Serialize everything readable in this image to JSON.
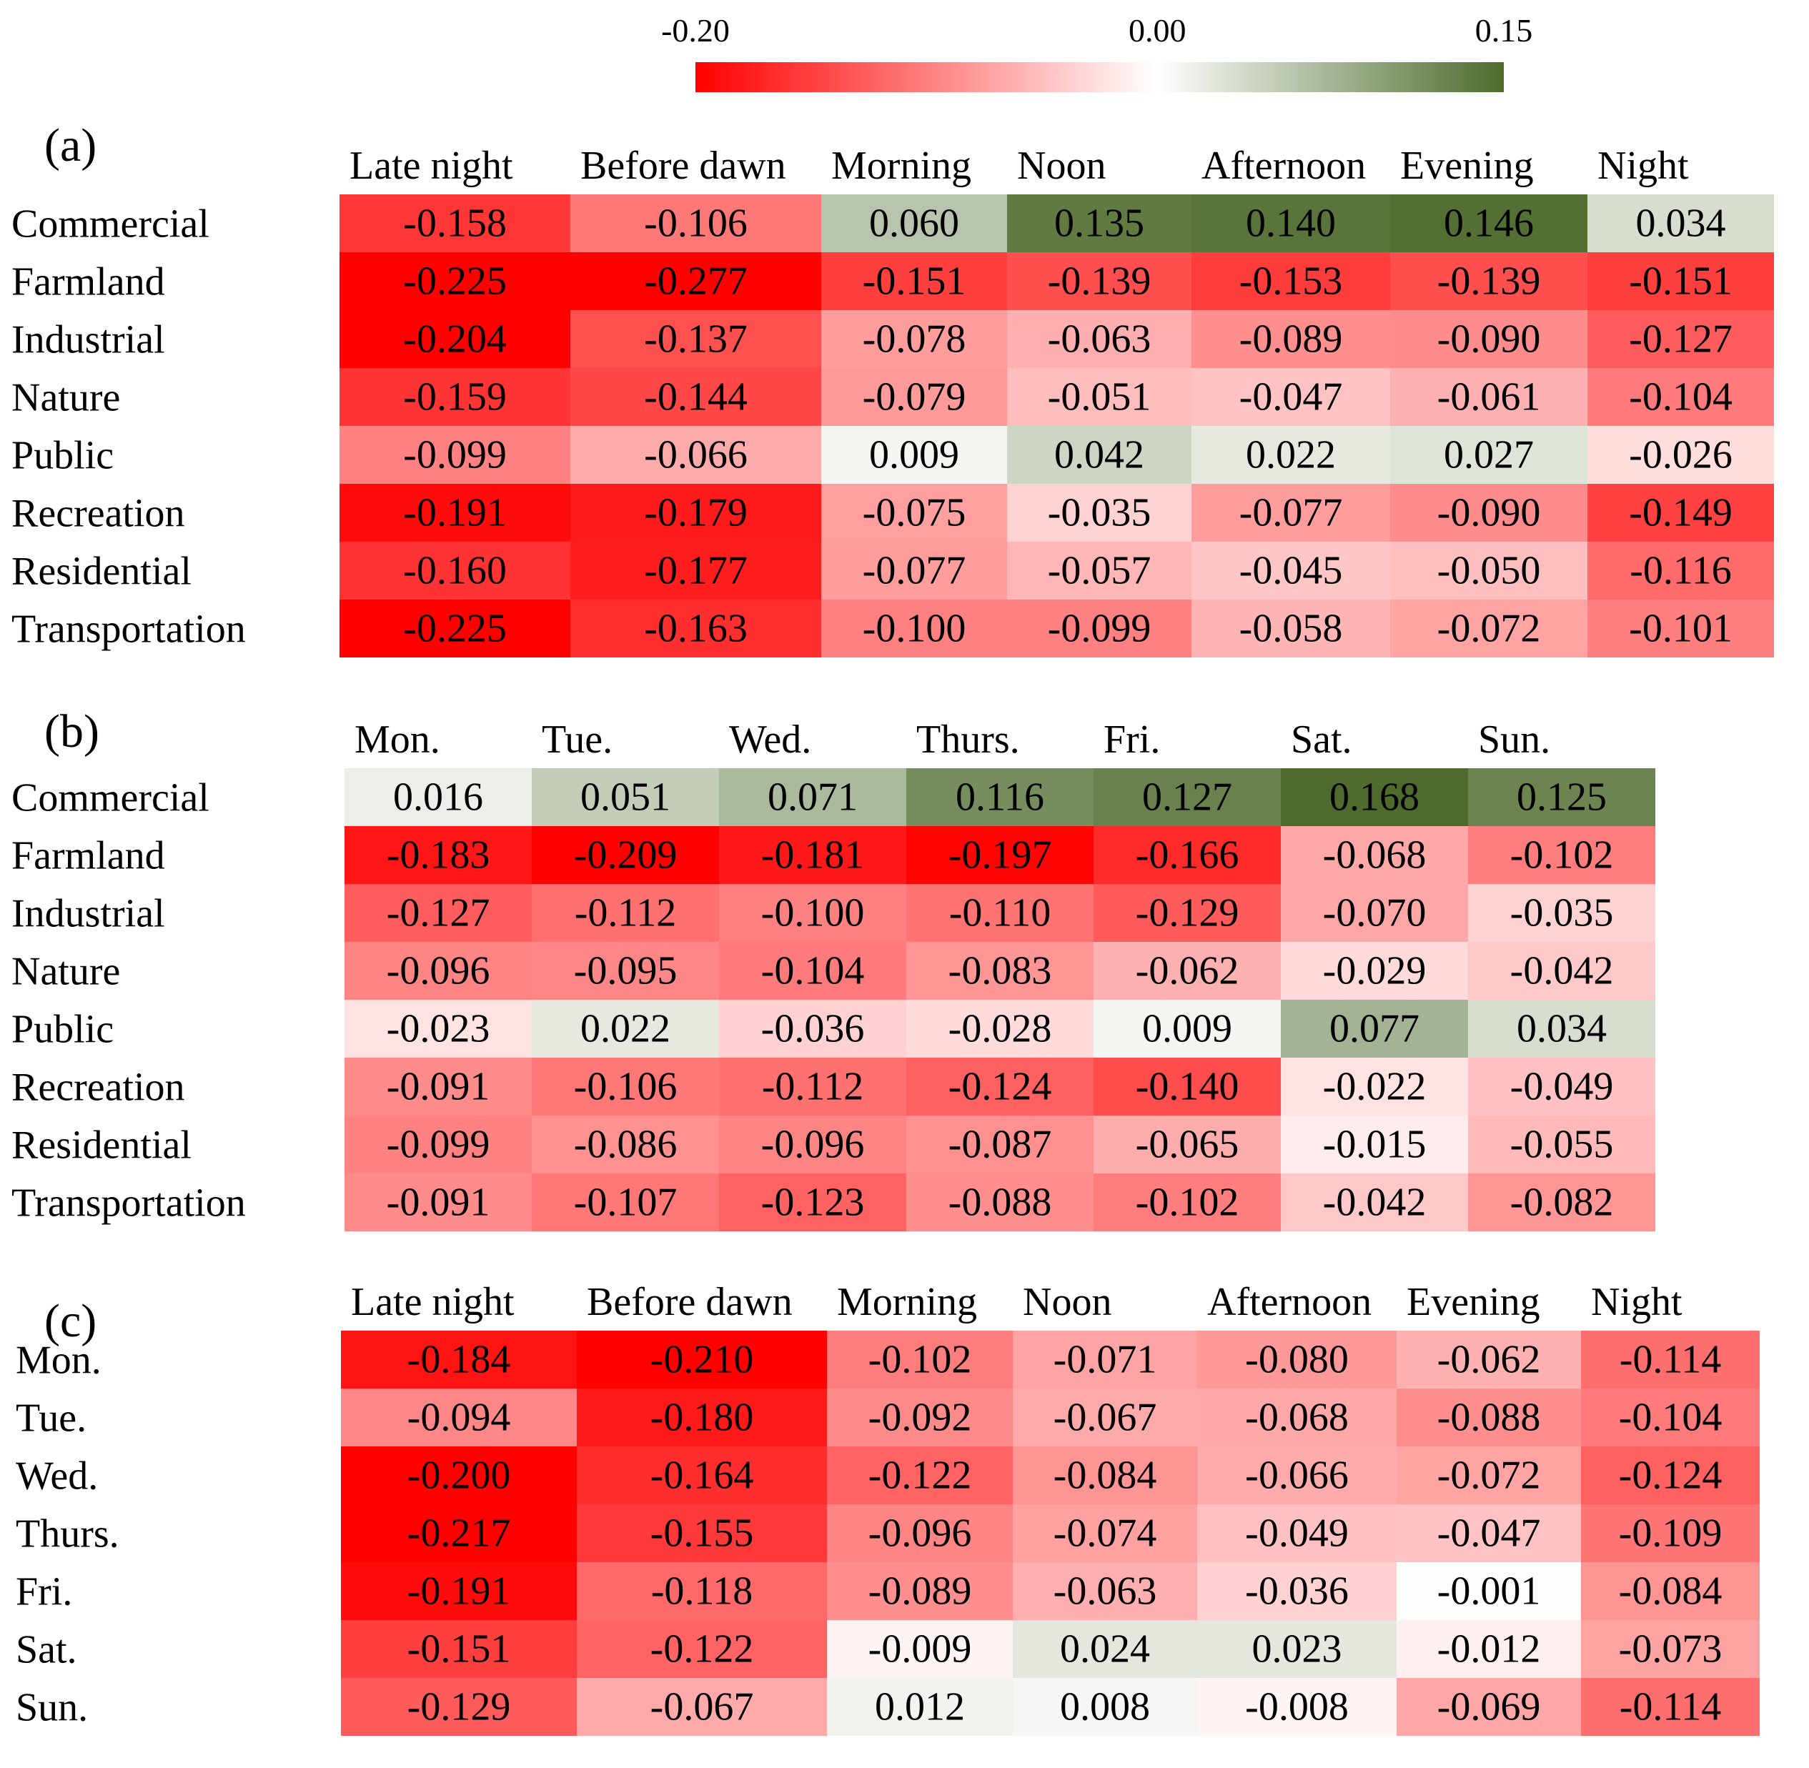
{
  "colors": {
    "negative_end": "#ff0000",
    "zero": "#ffffff",
    "positive_end": "#4e6b2d"
  },
  "chart_data": [
    {
      "type": "heatmap",
      "panel_label": "(a)",
      "columns": [
        "Late night",
        "Before dawn",
        "Morning",
        "Noon",
        "Afternoon",
        "Evening",
        "Night"
      ],
      "rows": [
        "Commercial",
        "Farmland",
        "Industrial",
        "Nature",
        "Public",
        "Recreation",
        "Residential",
        "Transportation"
      ],
      "values": [
        [
          -0.158,
          -0.106,
          0.06,
          0.135,
          0.14,
          0.146,
          0.034
        ],
        [
          -0.225,
          -0.277,
          -0.151,
          -0.139,
          -0.153,
          -0.139,
          -0.151
        ],
        [
          -0.204,
          -0.137,
          -0.078,
          -0.063,
          -0.089,
          -0.09,
          -0.127
        ],
        [
          -0.159,
          -0.144,
          -0.079,
          -0.051,
          -0.047,
          -0.061,
          -0.104
        ],
        [
          -0.099,
          -0.066,
          0.009,
          0.042,
          0.022,
          0.027,
          -0.026
        ],
        [
          -0.191,
          -0.179,
          -0.075,
          -0.035,
          -0.077,
          -0.09,
          -0.149
        ],
        [
          -0.16,
          -0.177,
          -0.077,
          -0.057,
          -0.045,
          -0.05,
          -0.116
        ],
        [
          -0.225,
          -0.163,
          -0.1,
          -0.099,
          -0.058,
          -0.072,
          -0.101
        ]
      ]
    },
    {
      "type": "heatmap",
      "panel_label": "(b)",
      "columns": [
        "Mon.",
        "Tue.",
        "Wed.",
        "Thurs.",
        "Fri.",
        "Sat.",
        "Sun."
      ],
      "rows": [
        "Commercial",
        "Farmland",
        "Industrial",
        "Nature",
        "Public",
        "Recreation",
        "Residential",
        "Transportation"
      ],
      "values": [
        [
          0.016,
          0.051,
          0.071,
          0.116,
          0.127,
          0.168,
          0.125
        ],
        [
          -0.183,
          -0.209,
          -0.181,
          -0.197,
          -0.166,
          -0.068,
          -0.102
        ],
        [
          -0.127,
          -0.112,
          -0.1,
          -0.11,
          -0.129,
          -0.07,
          -0.035
        ],
        [
          -0.096,
          -0.095,
          -0.104,
          -0.083,
          -0.062,
          -0.029,
          -0.042
        ],
        [
          -0.023,
          0.022,
          -0.036,
          -0.028,
          0.009,
          0.077,
          0.034
        ],
        [
          -0.091,
          -0.106,
          -0.112,
          -0.124,
          -0.14,
          -0.022,
          -0.049
        ],
        [
          -0.099,
          -0.086,
          -0.096,
          -0.087,
          -0.065,
          -0.015,
          -0.055
        ],
        [
          -0.091,
          -0.107,
          -0.123,
          -0.088,
          -0.102,
          -0.042,
          -0.082
        ]
      ]
    },
    {
      "type": "heatmap",
      "panel_label": "(c)",
      "columns": [
        "Late night",
        "Before dawn",
        "Morning",
        "Noon",
        "Afternoon",
        "Evening",
        "Night"
      ],
      "rows": [
        "Mon.",
        "Tue.",
        "Wed.",
        "Thurs.",
        "Fri.",
        "Sat.",
        "Sun."
      ],
      "values": [
        [
          -0.184,
          -0.21,
          -0.102,
          -0.071,
          -0.08,
          -0.062,
          -0.114
        ],
        [
          -0.094,
          -0.18,
          -0.092,
          -0.067,
          -0.068,
          -0.088,
          -0.104
        ],
        [
          -0.2,
          -0.164,
          -0.122,
          -0.084,
          -0.066,
          -0.072,
          -0.124
        ],
        [
          -0.217,
          -0.155,
          -0.096,
          -0.074,
          -0.049,
          -0.047,
          -0.109
        ],
        [
          -0.191,
          -0.118,
          -0.089,
          -0.063,
          -0.036,
          -0.001,
          -0.084
        ],
        [
          -0.151,
          -0.122,
          -0.009,
          0.024,
          0.023,
          -0.012,
          -0.073
        ],
        [
          -0.129,
          -0.067,
          0.012,
          0.008,
          -0.008,
          -0.069,
          -0.114
        ]
      ]
    }
  ],
  "colorbar": {
    "ticks": [
      {
        "label": "-0.20",
        "value": -0.2
      },
      {
        "label": "0.00",
        "value": 0.0
      },
      {
        "label": "0.15",
        "value": 0.15
      }
    ],
    "range": [
      -0.2,
      0.15
    ]
  }
}
